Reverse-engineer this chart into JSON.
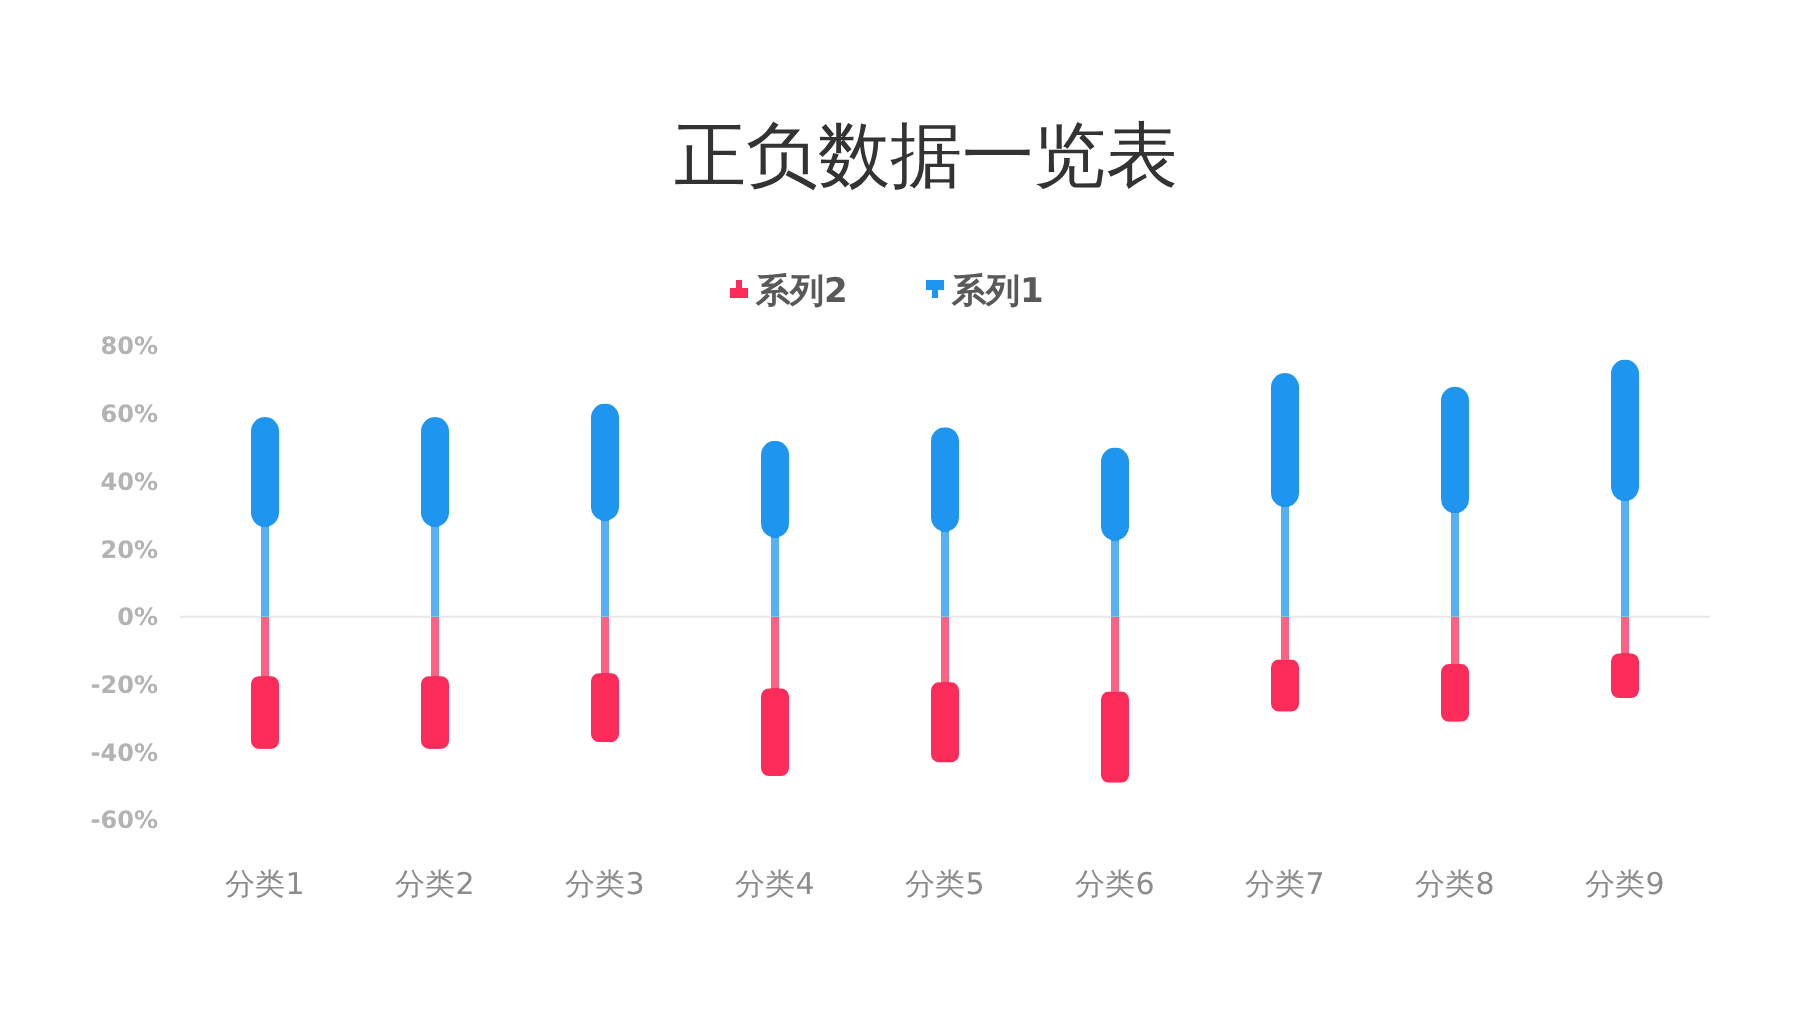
{
  "chart_data": {
    "type": "bar",
    "title": "正负数据一览表",
    "categories": [
      "分类1",
      "分类2",
      "分类3",
      "分类4",
      "分类5",
      "分类6",
      "分类7",
      "分类8",
      "分类9"
    ],
    "series": [
      {
        "name": "系列2",
        "color": "#fc2c5a",
        "values": [
          -39,
          -39,
          -37,
          -47,
          -43,
          -49,
          -28,
          -31,
          -24
        ]
      },
      {
        "name": "系列1",
        "color": "#1e96ef",
        "values": [
          59,
          59,
          63,
          52,
          56,
          50,
          72,
          68,
          76
        ]
      }
    ],
    "stacked": true,
    "ylim": [
      -60,
      80
    ],
    "yticks": [
      {
        "value": 80,
        "label": "80%"
      },
      {
        "value": 60,
        "label": "60%"
      },
      {
        "value": 40,
        "label": "40%"
      },
      {
        "value": 20,
        "label": "20%"
      },
      {
        "value": 0,
        "label": "0%"
      },
      {
        "value": -20,
        "label": "-20%"
      },
      {
        "value": -40,
        "label": "-40%"
      },
      {
        "value": -60,
        "label": "-60%"
      }
    ],
    "ref_lines": [
      {
        "axis": "y",
        "value": 0,
        "color": "#e8e8e8"
      }
    ],
    "grid": false,
    "legend": "top"
  }
}
